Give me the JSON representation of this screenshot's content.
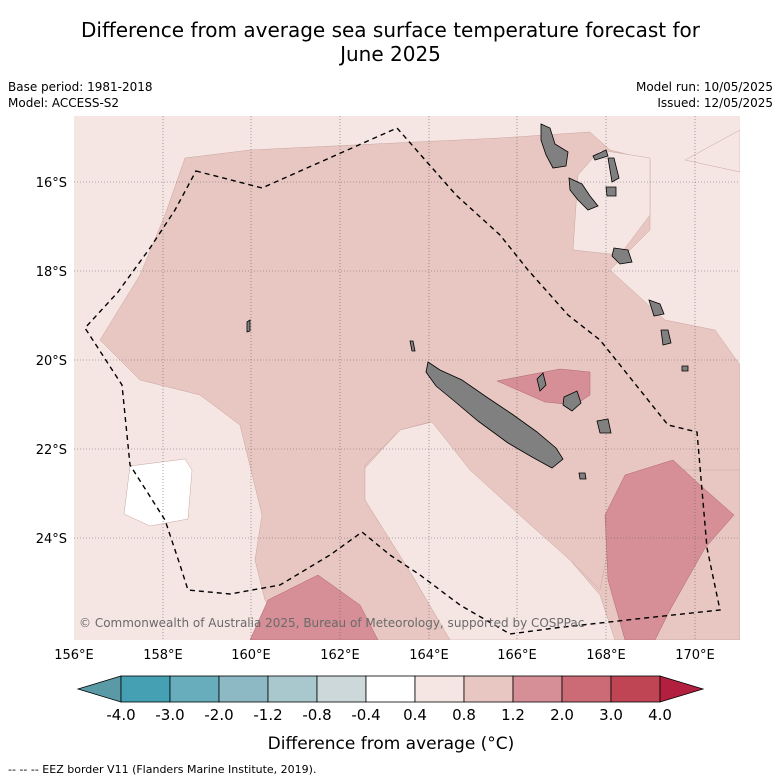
{
  "title_line1": "Difference from average sea surface temperature forecast for",
  "title_line2": "June 2025",
  "base_period": "Base period: 1981-2018",
  "model": "Model: ACCESS-S2",
  "model_run": "Model run: 10/05/2025",
  "issued": "Issued: 12/05/2025",
  "copyright": "© Commonwealth of Australia 2025, Bureau of Meteorology, supported by COSPPac",
  "lon_ticks": [
    "156°E",
    "158°E",
    "160°E",
    "162°E",
    "164°E",
    "166°E",
    "168°E",
    "170°E"
  ],
  "lat_ticks": [
    "16°S",
    "18°S",
    "20°S",
    "22°S",
    "24°S"
  ],
  "colorbar": {
    "title": "Difference from average (°C)",
    "labels": [
      "-4.0",
      "-3.0",
      "-2.0",
      "-1.2",
      "-0.8",
      "-0.4",
      "0.4",
      "0.8",
      "1.2",
      "2.0",
      "3.0",
      "4.0"
    ],
    "colors": [
      "#5a9aa6",
      "#44a0b2",
      "#68adbb",
      "#8cb9c4",
      "#a8c8cd",
      "#cdd8da",
      "#ffffff",
      "#f5e6e4",
      "#e8c7c2",
      "#d68f96",
      "#cc6a76",
      "#bf4555",
      "#b31f3f"
    ]
  },
  "map_colors": {
    "band_0_4_0_8": "#f5e6e4",
    "band_0_8_1_2": "#e8c7c2",
    "band_1_2_2_0": "#d68f96",
    "neutral": "#ffffff",
    "land": "#808080"
  },
  "footer": "--  --  -- EEZ border V11 (Flanders Marine Institute, 2019)."
}
